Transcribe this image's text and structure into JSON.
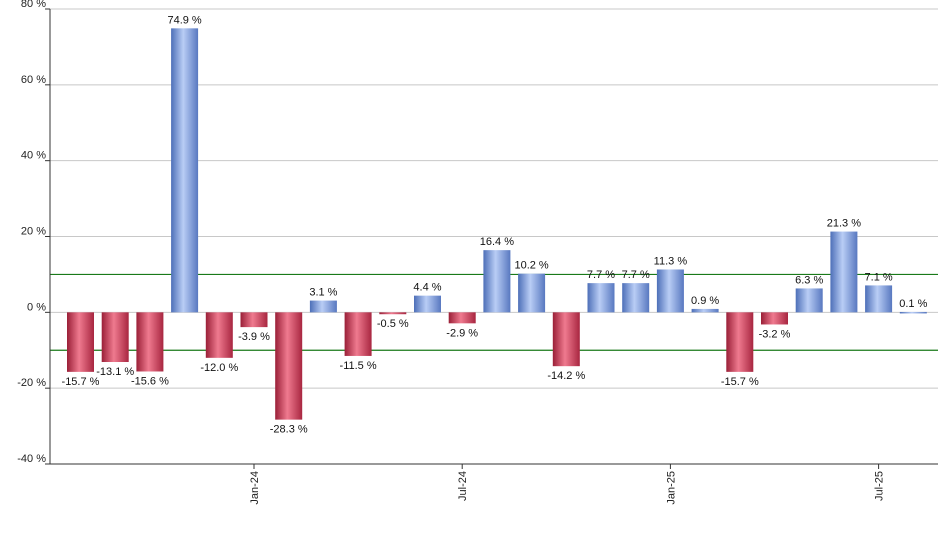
{
  "chart_data": {
    "type": "bar",
    "title": "",
    "xlabel": "",
    "ylabel": "",
    "ylim": [
      -40,
      80
    ],
    "y_ticks": [
      80,
      60,
      40,
      20,
      0,
      -20,
      -40
    ],
    "y_tick_labels": [
      "80 %",
      "60 %",
      "40 %",
      "20 %",
      "0 %",
      "-20 %",
      "-40 %"
    ],
    "x_tick_labels": [
      {
        "label": "Jan-24",
        "index": 5
      },
      {
        "label": "Jul-24",
        "index": 11
      },
      {
        "label": "Jan-25",
        "index": 17
      },
      {
        "label": "Jul-25",
        "index": 23
      }
    ],
    "grid": true,
    "reference_lines": [
      10,
      -10
    ],
    "values": [
      -15.7,
      -13.1,
      -15.6,
      74.9,
      -12.0,
      -3.9,
      -28.3,
      3.1,
      -11.5,
      -0.5,
      4.4,
      -2.9,
      16.4,
      10.2,
      -14.2,
      7.7,
      7.7,
      11.3,
      0.9,
      -15.7,
      -3.2,
      6.3,
      21.3,
      7.1,
      0.1
    ],
    "value_labels": [
      "-15.7 %",
      "-13.1 %",
      "-15.6 %",
      "74.9 %",
      "-12.0 %",
      "-3.9 %",
      "-28.3 %",
      "3.1 %",
      "-11.5 %",
      "-0.5 %",
      "4.4 %",
      "-2.9 %",
      "16.4 %",
      "10.2 %",
      "-14.2 %",
      "7.7 %",
      "7.7 %",
      "11.3 %",
      "0.9 %",
      "-15.7 %",
      "-3.2 %",
      "6.3 %",
      "21.3 %",
      "7.1 %",
      "0.1 %"
    ],
    "colors": {
      "positive": "#7b9de0",
      "negative": "#d03a56",
      "reference_line": "#1a7a1a",
      "grid": "#c8c8c8"
    }
  }
}
